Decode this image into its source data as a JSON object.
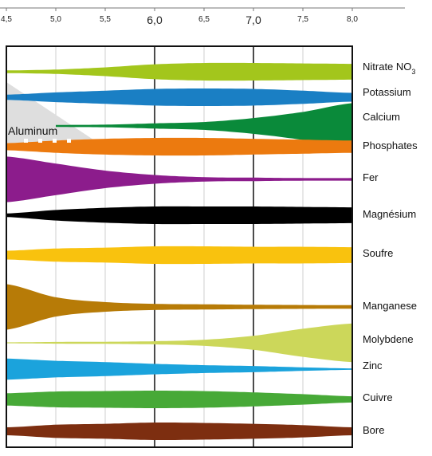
{
  "chart_data": {
    "type": "area",
    "x_axis": {
      "range": [
        4.5,
        8.0
      ],
      "ticks": [
        "4,5",
        "5,0",
        "5,5",
        "6,0",
        "6,5",
        "7,0",
        "7,5",
        "8,0"
      ],
      "tick_values": [
        4.5,
        5.0,
        5.5,
        6.0,
        6.5,
        7.0,
        7.5,
        8.0
      ],
      "major_ticks": [
        6.0,
        7.0
      ],
      "grid": true
    },
    "colors": {
      "nitrate": "#a3c61c",
      "potassium": "#1a7fc4",
      "calcium": "#0a8a3a",
      "phosphates": "#ec7a0f",
      "fer": "#8c1c8c",
      "magnesium": "#000000",
      "soufre": "#f9c20e",
      "manganese": "#b77b07",
      "molybdene": "#ccd75a",
      "zinc": "#1ba3dc",
      "cuivre": "#47a937",
      "bore": "#7d2e10",
      "aluminum": "#dedede"
    },
    "series": [
      {
        "key": "nitrate",
        "name": "Nitrate NO",
        "subscript": "3",
        "x": [
          4.5,
          5.0,
          5.5,
          6.0,
          6.5,
          7.0,
          7.5,
          8.0
        ],
        "width": [
          0.15,
          0.25,
          0.5,
          0.85,
          1.0,
          1.0,
          0.95,
          0.9
        ]
      },
      {
        "key": "potassium",
        "name": "Potassium",
        "x": [
          4.5,
          5.0,
          5.5,
          6.0,
          6.5,
          7.0,
          7.5,
          8.0
        ],
        "width": [
          0.3,
          0.55,
          0.75,
          0.95,
          1.0,
          0.95,
          0.75,
          0.5
        ]
      },
      {
        "key": "calcium",
        "name": "Calcium",
        "x": [
          5.0,
          5.5,
          6.0,
          6.5,
          7.0,
          7.5,
          8.0
        ],
        "width": [
          0.12,
          0.15,
          0.3,
          0.45,
          0.9,
          1.6,
          2.6
        ]
      },
      {
        "key": "phosphates",
        "name": "Phosphates",
        "x": [
          4.5,
          5.0,
          5.5,
          6.0,
          6.5,
          7.0,
          7.5,
          8.0
        ],
        "width": [
          0.4,
          0.7,
          0.9,
          1.0,
          1.0,
          0.9,
          0.8,
          0.7
        ]
      },
      {
        "key": "fer",
        "name": "Fer",
        "x": [
          4.5,
          5.0,
          5.5,
          6.0,
          6.5,
          7.0,
          7.5,
          8.0
        ],
        "width": [
          2.6,
          1.8,
          1.0,
          0.5,
          0.25,
          0.2,
          0.15,
          0.15
        ]
      },
      {
        "key": "magnesium",
        "name": "Magnésium",
        "x": [
          4.5,
          5.0,
          5.5,
          6.0,
          6.5,
          7.0,
          7.5,
          8.0
        ],
        "width": [
          0.2,
          0.6,
          0.85,
          1.0,
          1.0,
          1.0,
          0.95,
          0.9
        ]
      },
      {
        "key": "soufre",
        "name": "Soufre",
        "x": [
          4.5,
          5.0,
          5.5,
          6.0,
          6.5,
          7.0,
          7.5,
          8.0
        ],
        "width": [
          0.5,
          0.75,
          0.85,
          1.0,
          1.0,
          0.95,
          0.95,
          0.9
        ]
      },
      {
        "key": "manganese",
        "name": "Manganese",
        "x": [
          4.5,
          5.0,
          5.5,
          6.0,
          6.5,
          7.0,
          7.5,
          8.0
        ],
        "width": [
          2.6,
          1.1,
          0.55,
          0.35,
          0.3,
          0.25,
          0.22,
          0.2
        ]
      },
      {
        "key": "molybdene",
        "name": "Molybdene",
        "x": [
          4.5,
          5.0,
          5.5,
          6.0,
          6.5,
          7.0,
          7.5,
          8.0
        ],
        "width": [
          0.05,
          0.1,
          0.12,
          0.18,
          0.35,
          0.8,
          1.6,
          2.2
        ]
      },
      {
        "key": "zinc",
        "name": "Zinc",
        "x": [
          4.5,
          5.0,
          5.5,
          6.0,
          6.5,
          7.0,
          7.5,
          8.0
        ],
        "width": [
          1.2,
          0.95,
          0.8,
          0.6,
          0.45,
          0.35,
          0.2,
          0.08
        ]
      },
      {
        "key": "cuivre",
        "name": "Cuivre",
        "x": [
          4.5,
          5.0,
          5.5,
          6.0,
          6.5,
          7.0,
          7.5,
          8.0
        ],
        "width": [
          0.7,
          0.9,
          0.95,
          1.0,
          0.95,
          0.8,
          0.6,
          0.35
        ]
      },
      {
        "key": "bore",
        "name": "Bore",
        "x": [
          4.5,
          5.0,
          5.5,
          6.0,
          6.5,
          7.0,
          7.5,
          8.0
        ],
        "width": [
          0.45,
          0.75,
          0.85,
          1.0,
          0.95,
          0.85,
          0.7,
          0.45
        ]
      }
    ],
    "annotations": [
      {
        "key": "aluminum",
        "text": "Aluminum",
        "x_end": 5.5
      }
    ]
  }
}
